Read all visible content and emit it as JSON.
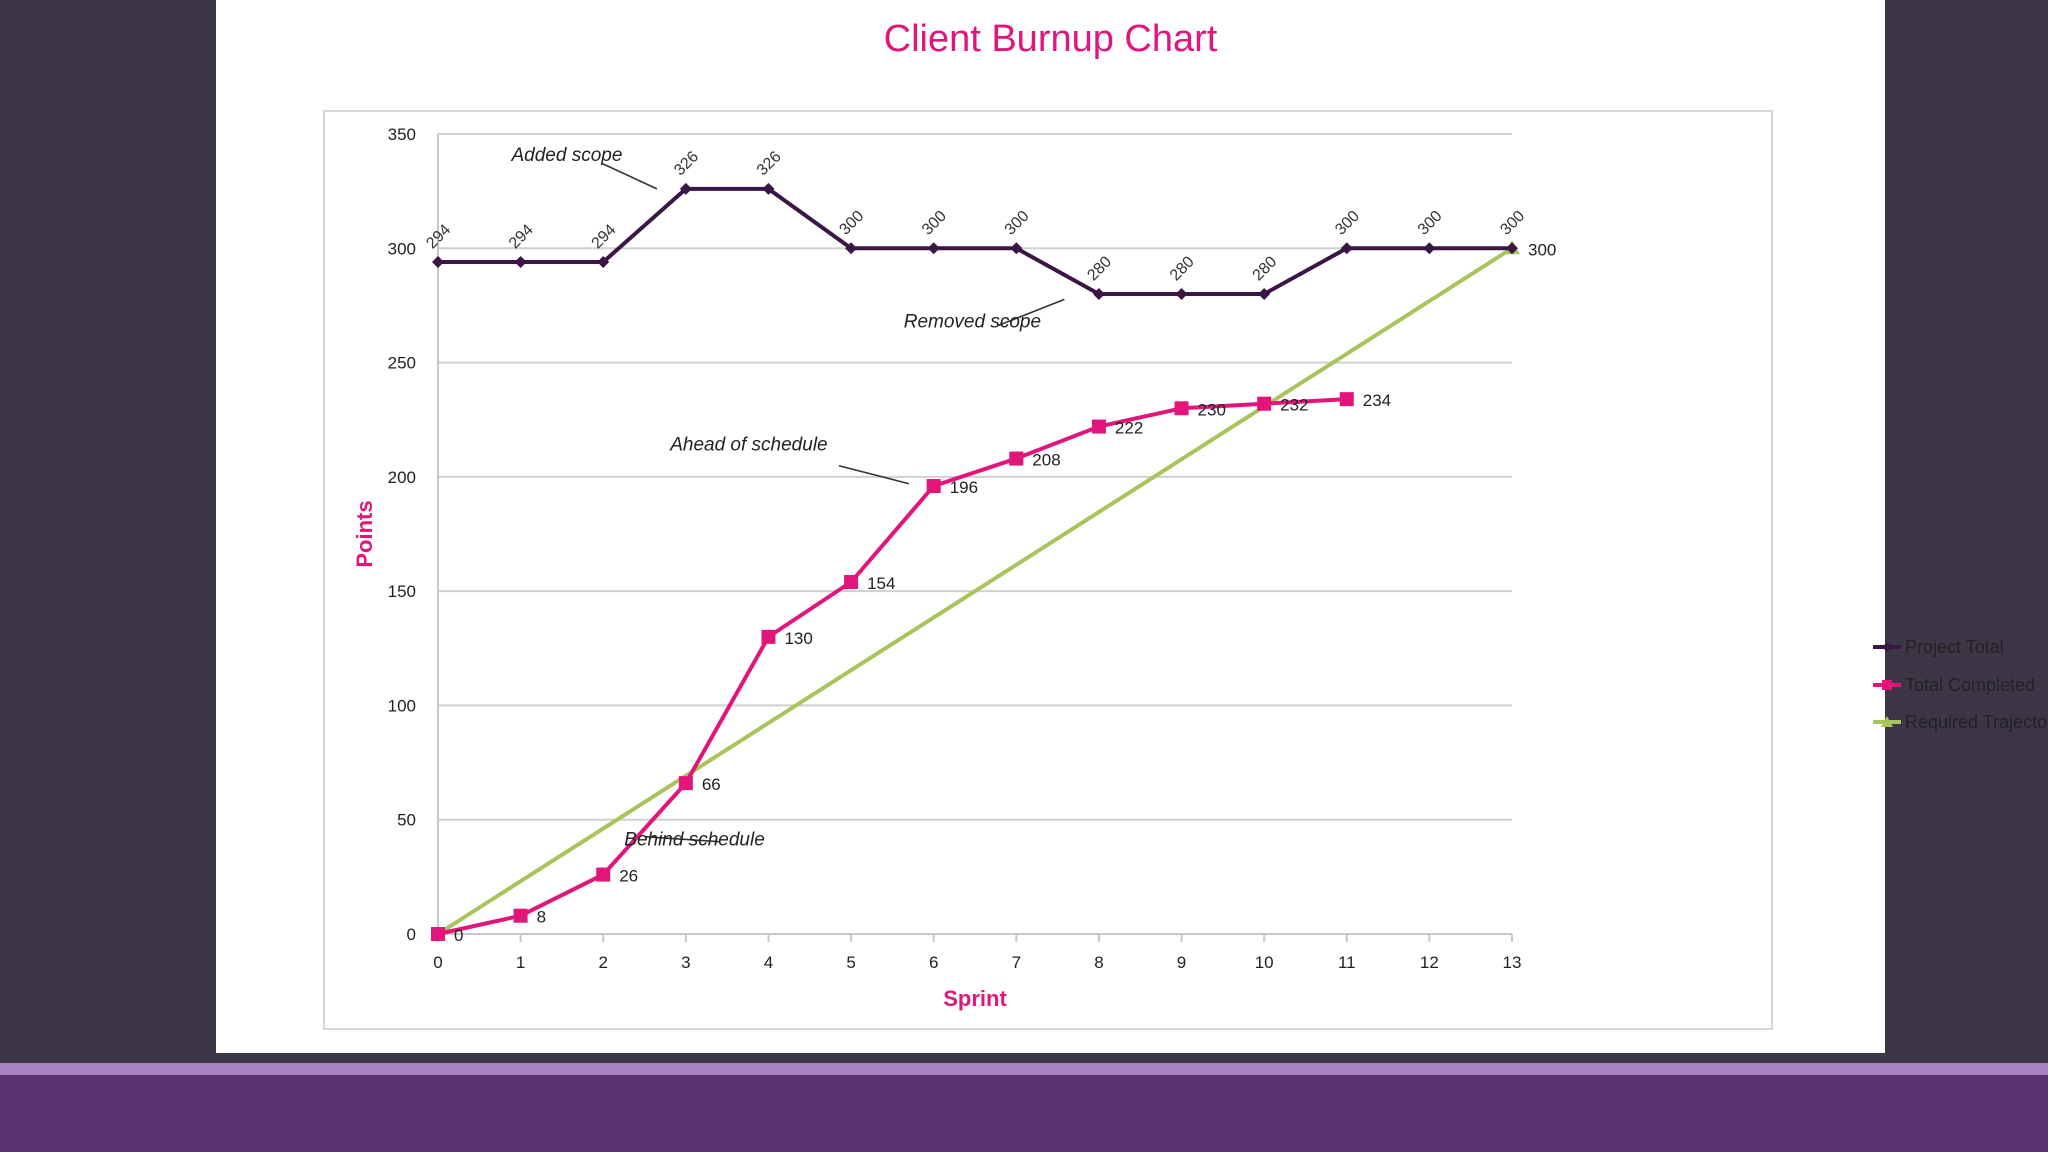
{
  "slide": {
    "background_color": "#3c3646",
    "accent_color": "#a783c4",
    "band_color": "#5a3070"
  },
  "chart_data": {
    "type": "line",
    "title": "Client Burnup Chart",
    "xlabel": "Sprint",
    "ylabel": "Points",
    "xlim": [
      0,
      13
    ],
    "ylim": [
      0,
      350
    ],
    "x_ticks": [
      0,
      1,
      2,
      3,
      4,
      5,
      6,
      7,
      8,
      9,
      10,
      11,
      12,
      13
    ],
    "y_ticks": [
      0,
      50,
      100,
      150,
      200,
      250,
      300,
      350
    ],
    "grid": "horizontal",
    "legend_position": "right",
    "series": [
      {
        "name": "Project Total",
        "color": "#3b1546",
        "marker": "diamond",
        "x": [
          0,
          1,
          2,
          3,
          4,
          5,
          6,
          7,
          8,
          9,
          10,
          11,
          12,
          13
        ],
        "values": [
          294,
          294,
          294,
          326,
          326,
          300,
          300,
          300,
          280,
          280,
          280,
          300,
          300,
          300
        ],
        "label_style": "rotated-above"
      },
      {
        "name": "Total Completed",
        "color": "#e2157a",
        "marker": "square",
        "x": [
          0,
          1,
          2,
          3,
          4,
          5,
          6,
          7,
          8,
          9,
          10,
          11
        ],
        "values": [
          0,
          8,
          26,
          66,
          130,
          154,
          196,
          208,
          222,
          230,
          232,
          234
        ],
        "label_style": "right"
      },
      {
        "name": "Required Trajectory",
        "color": "#a8c45a",
        "marker": "triangle",
        "x": [
          0,
          13
        ],
        "values": [
          0,
          300
        ],
        "labels": [
          null,
          "300"
        ],
        "label_style": "right"
      }
    ],
    "annotations": [
      {
        "text": "Added scope",
        "at": [
          2.65,
          326
        ]
      },
      {
        "text": "Removed scope",
        "at": [
          7.8,
          282
        ]
      },
      {
        "text": "Ahead of schedule",
        "at": [
          5.7,
          197
        ]
      },
      {
        "text": "Behind schedule",
        "at": [
          2.5,
          36
        ]
      }
    ]
  }
}
